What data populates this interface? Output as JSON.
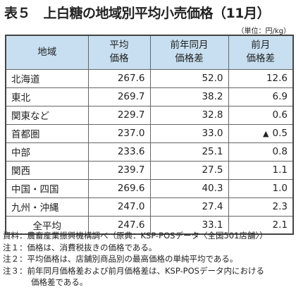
{
  "title": "表５　上白糖の地域別平均小売価格（11月）",
  "unit": "（単位：円/kg）",
  "table": {
    "headers": {
      "region": "地域",
      "avg_price_1": "平均",
      "avg_price_2": "価格",
      "yoy_1": "前年同月",
      "yoy_2": "価格差",
      "mom_1": "前月",
      "mom_2": "価格差"
    },
    "rows": [
      {
        "region": "北海道",
        "price": "267.6",
        "yoy": "52.0",
        "mom": "12.6",
        "mom_negative": false
      },
      {
        "region": "東北",
        "price": "269.7",
        "yoy": "38.2",
        "mom": "6.9",
        "mom_negative": false
      },
      {
        "region": "関東など",
        "price": "229.7",
        "yoy": "32.8",
        "mom": "0.6",
        "mom_negative": false
      },
      {
        "region": "首都圏",
        "price": "237.0",
        "yoy": "33.0",
        "mom": "0.5",
        "mom_negative": true
      },
      {
        "region": "中部",
        "price": "233.6",
        "yoy": "25.1",
        "mom": "0.8",
        "mom_negative": false
      },
      {
        "region": "関西",
        "price": "239.7",
        "yoy": "27.5",
        "mom": "1.1",
        "mom_negative": false
      },
      {
        "region": "中国・四国",
        "price": "269.6",
        "yoy": "40.3",
        "mom": "1.0",
        "mom_negative": false
      },
      {
        "region": "九州・沖縄",
        "price": "247.0",
        "yoy": "27.4",
        "mom": "2.3",
        "mom_negative": false
      }
    ],
    "average": {
      "region": "全平均",
      "price": "247.6",
      "yoy": "33.1",
      "mom": "2.1"
    },
    "negative_marker": "▲"
  },
  "notes": [
    {
      "text": "資料：農畜産業振興機構調べ（原典：KSP-POSデータ〈全国501店舗〉）"
    },
    {
      "text": "注１：価格は、消費税抜きの価格である。"
    },
    {
      "text": "注２：平均価格は、店舗別商品別の最高価格の単純平均である。"
    },
    {
      "text": "注３：前年同月価格差および前月価格差は、KSP-POSデータ内における",
      "cont": "価格差である。"
    }
  ]
}
